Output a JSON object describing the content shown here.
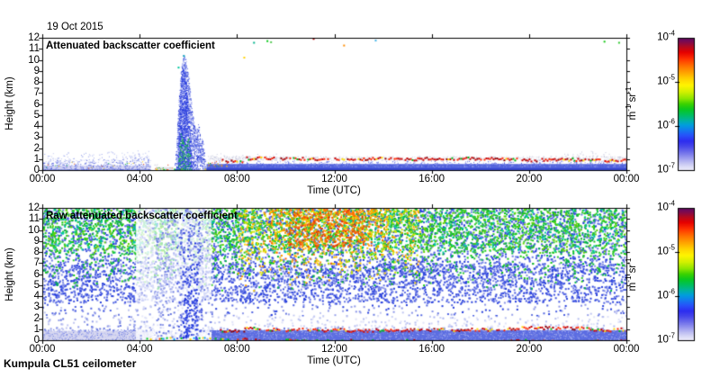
{
  "figure": {
    "date_label": "19 Oct 2015",
    "station_label": "Kumpula CL51 ceilometer",
    "background": "#ffffff"
  },
  "axes": {
    "x_label": "Time (UTC)",
    "y_label": "Height (km)",
    "x_tick_labels": [
      "00:00",
      "04:00",
      "08:00",
      "12:00",
      "16:00",
      "20:00",
      "00:00"
    ],
    "y_tick_labels": [
      "0",
      "1",
      "2",
      "3",
      "4",
      "5",
      "6",
      "7",
      "8",
      "9",
      "10",
      "11",
      "12"
    ],
    "x_range_hours": [
      0,
      24
    ],
    "y_range_km": [
      0,
      12
    ]
  },
  "colorbar": {
    "tick_labels": [
      "10^-4",
      "10^-5",
      "10^-6",
      "10^-7"
    ],
    "unit_label": "m^-1 sr^-1",
    "value_min": "1e-7",
    "value_max": "1e-4",
    "gradient_stops": [
      [
        0.0,
        "#5a0a64"
      ],
      [
        0.03,
        "#7c0a50"
      ],
      [
        0.07,
        "#b40a1e"
      ],
      [
        0.11,
        "#e60000"
      ],
      [
        0.16,
        "#ff3200"
      ],
      [
        0.21,
        "#ff6e00"
      ],
      [
        0.26,
        "#ffa000"
      ],
      [
        0.31,
        "#ffd200"
      ],
      [
        0.36,
        "#fff500"
      ],
      [
        0.41,
        "#d2f000"
      ],
      [
        0.46,
        "#8ce600"
      ],
      [
        0.5,
        "#3cd200"
      ],
      [
        0.54,
        "#0ac81e"
      ],
      [
        0.58,
        "#00c05a"
      ],
      [
        0.62,
        "#00b49b"
      ],
      [
        0.66,
        "#009ede"
      ],
      [
        0.7,
        "#1478f0"
      ],
      [
        0.74,
        "#2850fa"
      ],
      [
        0.78,
        "#2d2df0"
      ],
      [
        0.82,
        "#4646ea"
      ],
      [
        0.86,
        "#6a6aea"
      ],
      [
        0.9,
        "#9292ee"
      ],
      [
        0.94,
        "#bcbcf2"
      ],
      [
        0.97,
        "#d8d8f6"
      ],
      [
        1.0,
        "#ecebfa"
      ]
    ]
  },
  "chart_data": [
    {
      "type": "heatmap",
      "title": "Attenuated backscatter coefficient",
      "xlabel": "Time (UTC)",
      "ylabel": "Height (km)",
      "x_range": [
        0,
        24
      ],
      "y_range": [
        0,
        12
      ],
      "value_range": [
        "1e-7",
        "1e-4"
      ],
      "features": [
        {
          "kind": "fill",
          "t": [
            0,
            4.45
          ],
          "h": [
            0,
            0.42
          ],
          "color": "#d6d6f2"
        },
        {
          "kind": "fill",
          "t": [
            0,
            4.45
          ],
          "h": [
            0,
            0.07
          ],
          "color": "#8c96e8"
        },
        {
          "kind": "speckle",
          "t": [
            0,
            4.45
          ],
          "h": [
            0,
            1.15
          ],
          "density": 0.5,
          "size": 1,
          "colors": [
            "#6a7ae0",
            "#8c96e8",
            "#b4bcf0",
            "#4656dc"
          ],
          "fade": "top"
        },
        {
          "kind": "speckle",
          "t": [
            0,
            4.45
          ],
          "h": [
            0.7,
            1.8
          ],
          "density": 0.16,
          "size": 1,
          "colors": [
            "#9aa6ec",
            "#c0c6f2"
          ],
          "fade": "top"
        },
        {
          "kind": "speckle",
          "t": [
            3.2,
            4.4
          ],
          "h": [
            0.8,
            2.1
          ],
          "density": 0.14,
          "size": 1,
          "colors": [
            "#8c96e8",
            "#b4bcf0"
          ],
          "fade": "top"
        },
        {
          "kind": "speckle",
          "t": [
            0.1,
            4.3
          ],
          "h": [
            0.1,
            0.8
          ],
          "density": 0.02,
          "size": 1,
          "colors": [
            "#e64600",
            "#00b43c",
            "#ffd200"
          ]
        },
        {
          "kind": "fill",
          "t": [
            4.65,
            5.4
          ],
          "h": [
            0,
            0.28
          ],
          "color": "#e4e4ee"
        },
        {
          "kind": "speckle",
          "t": [
            4.6,
            5.45
          ],
          "h": [
            0.1,
            0.55
          ],
          "density": 0.12,
          "size": 1,
          "colors": [
            "#b4b4c8",
            "#d22800",
            "#00b43c",
            "#ff9600",
            "#c8c8dc"
          ]
        },
        {
          "kind": "line",
          "t": [
            4.3,
            6.9
          ],
          "h": 0.08,
          "jitter": 0.06,
          "density": 0.3,
          "size": 2,
          "colors": [
            "#00c814",
            "#ff3c00",
            "#ffdc00",
            "#ff9600"
          ]
        },
        {
          "kind": "poly",
          "pts": [
            [
              5.42,
              0
            ],
            [
              5.5,
              2.2
            ],
            [
              5.58,
              5.5
            ],
            [
              5.68,
              8.8
            ],
            [
              5.78,
              10.55
            ],
            [
              5.9,
              10.0
            ],
            [
              6.0,
              8.6
            ],
            [
              6.1,
              6.6
            ],
            [
              6.22,
              4.4
            ],
            [
              6.32,
              3.4
            ],
            [
              6.42,
              4.6
            ],
            [
              6.5,
              2.4
            ],
            [
              6.58,
              3.1
            ],
            [
              6.68,
              1.2
            ],
            [
              6.75,
              0
            ]
          ],
          "density": 0.7,
          "size": 1,
          "colors": [
            "#2336dd",
            "#3c50e6",
            "#6a7ae6",
            "#a0aaf0",
            "#1428c8"
          ]
        },
        {
          "kind": "poly",
          "pts": [
            [
              5.55,
              0
            ],
            [
              5.62,
              5.0
            ],
            [
              5.72,
              9.6
            ],
            [
              5.85,
              9.0
            ],
            [
              5.95,
              7.0
            ],
            [
              6.05,
              4.0
            ],
            [
              6.15,
              0
            ]
          ],
          "density": 0.8,
          "size": 1,
          "colors": [
            "#1e32dc",
            "#2d41e0",
            "#4656e4"
          ]
        },
        {
          "kind": "poly",
          "pts": [
            [
              5.55,
              0
            ],
            [
              5.68,
              3.4
            ],
            [
              5.85,
              2.2
            ],
            [
              6.0,
              3.0
            ],
            [
              6.08,
              1.2
            ],
            [
              6.1,
              0
            ]
          ],
          "density": 0.38,
          "size": 1,
          "colors": [
            "#00b446",
            "#14c814",
            "#32c850"
          ]
        },
        {
          "kind": "dots",
          "pts": [
            [
              5.82,
              10.35,
              "#00a0b4"
            ],
            [
              5.6,
              9.3,
              "#00c8a0"
            ]
          ]
        },
        {
          "kind": "fill",
          "t": [
            6.75,
            24
          ],
          "h": [
            0,
            0.55
          ],
          "color": "#5566dd"
        },
        {
          "kind": "fill",
          "t": [
            6.75,
            24
          ],
          "h": [
            0,
            0.18
          ],
          "color": "#3848d0"
        },
        {
          "kind": "speckle",
          "t": [
            6.75,
            24
          ],
          "h": [
            0.3,
            0.95
          ],
          "density": 0.5,
          "size": 1,
          "colors": [
            "#4656dc",
            "#6a7ae6",
            "#96a0ec"
          ],
          "fade": "top"
        },
        {
          "kind": "speckle",
          "t": [
            6.75,
            24
          ],
          "h": [
            0.9,
            1.28
          ],
          "density": 0.4,
          "size": 1,
          "colors": [
            "#d8d8e6",
            "#c6c6da",
            "#e8e8f2"
          ]
        },
        {
          "kind": "speckle",
          "t": [
            6.9,
            9.6
          ],
          "h": [
            1.0,
            1.55
          ],
          "density": 0.22,
          "size": 1,
          "colors": [
            "#ccd0e4",
            "#b8bcd8"
          ],
          "fade": "top"
        },
        {
          "kind": "speckle",
          "t": [
            21.4,
            23.3
          ],
          "h": [
            1.2,
            1.95
          ],
          "density": 0.12,
          "size": 1,
          "colors": [
            "#c8c8dc",
            "#b0b4d0"
          ],
          "fade": "top"
        },
        {
          "kind": "speckle",
          "t": [
            6.8,
            7.6
          ],
          "h": [
            0.35,
            0.85
          ],
          "density": 0.18,
          "size": 1,
          "colors": [
            "#ff3c00",
            "#00b43c",
            "#ffdc00",
            "#ff9600"
          ]
        },
        {
          "kind": "line",
          "t": [
            7.3,
            8.3
          ],
          "h": 0.85,
          "jitter": 0.1,
          "density": 0.8,
          "size": 2,
          "colors": [
            "#c80000",
            "#ff2800",
            "#8c0000",
            "#ffdc00",
            "#00b414"
          ],
          "weights": [
            0.45,
            0.25,
            0.12,
            0.1,
            0.08
          ]
        },
        {
          "kind": "line",
          "t": [
            8.3,
            24
          ],
          "h": 1.04,
          "jitter": 0.11,
          "density": 0.85,
          "size": 2,
          "colors": [
            "#c80000",
            "#ff2800",
            "#8c0000",
            "#ffdc00",
            "#00b414"
          ],
          "weights": [
            0.45,
            0.25,
            0.12,
            0.1,
            0.08
          ]
        },
        {
          "kind": "dots",
          "pts": [
            [
              8.3,
              10.2,
              "#ffd200"
            ],
            [
              8.7,
              11.55,
              "#00b48c"
            ],
            [
              9.25,
              11.7,
              "#00c814"
            ],
            [
              9.4,
              11.6,
              "#50c850"
            ],
            [
              11.15,
              11.9,
              "#b40000"
            ],
            [
              12.4,
              11.3,
              "#ff8c00"
            ],
            [
              13.7,
              11.75,
              "#46b4e6"
            ],
            [
              23.1,
              11.65,
              "#14c814"
            ],
            [
              23.7,
              11.55,
              "#32c832"
            ]
          ]
        }
      ]
    },
    {
      "type": "heatmap",
      "title": "Raw attenuated backscatter coefficient",
      "xlabel": "Time (UTC)",
      "ylabel": "Height (km)",
      "x_range": [
        0,
        24
      ],
      "y_range": [
        0,
        12
      ],
      "value_range": [
        "1e-7",
        "1e-4"
      ],
      "features": [
        {
          "kind": "fill",
          "t": [
            0,
            4.5
          ],
          "h": [
            0,
            0.85
          ],
          "color": "#d8d8f0"
        },
        {
          "kind": "fill",
          "t": [
            6.95,
            24
          ],
          "h": [
            0,
            0.9
          ],
          "color": "#5b6ce2"
        },
        {
          "kind": "speckle",
          "t": [
            0,
            24
          ],
          "h": [
            0,
            1.0
          ],
          "density": 0.3,
          "size": 1,
          "colors": [
            "#8c96e8",
            "#b4bcf0",
            "#6a7ae0"
          ]
        },
        {
          "kind": "speckle",
          "t": [
            0,
            24
          ],
          "h": [
            0.9,
            3.2
          ],
          "density": 0.2,
          "size": 2,
          "colors": [
            "#96a0ea",
            "#c0c6f2",
            "#6a7ae0"
          ],
          "fade": "top"
        },
        {
          "kind": "speckle",
          "t": [
            0,
            24
          ],
          "h": [
            1.8,
            7.0
          ],
          "density": 0.28,
          "size": 2,
          "colors": [
            "#2840dc",
            "#5064e2",
            "#8c96e8"
          ],
          "fade": "bottom"
        },
        {
          "kind": "speckle",
          "t": [
            0,
            24
          ],
          "h": [
            3.5,
            12
          ],
          "density": 0.3,
          "size": 2,
          "colors": [
            "#2840dc",
            "#4658e0",
            "#6a7ae6"
          ]
        },
        {
          "kind": "speckle",
          "t": [
            0,
            24
          ],
          "h": [
            4.5,
            12
          ],
          "density": 0.34,
          "size": 2,
          "colors": [
            "#14c814",
            "#32c832",
            "#00b446"
          ],
          "fade": "bottom"
        },
        {
          "kind": "speckle",
          "t": [
            0,
            24
          ],
          "h": [
            8,
            12
          ],
          "density": 0.22,
          "size": 2,
          "colors": [
            "#00c8a0",
            "#64d200",
            "#28c828"
          ]
        },
        {
          "kind": "speckle",
          "t": [
            8,
            15.5
          ],
          "h": [
            4.5,
            12
          ],
          "density": 0.26,
          "size": 2,
          "colors": [
            "#ffd200",
            "#c8e600",
            "#ffa000"
          ],
          "fade": "bottom"
        },
        {
          "kind": "speckle",
          "t": [
            9.3,
            14.2
          ],
          "h": [
            6.5,
            12
          ],
          "density": 0.3,
          "size": 2,
          "colors": [
            "#ff9600",
            "#ffc800",
            "#ff6400"
          ],
          "fade": "bottom"
        },
        {
          "kind": "speckle",
          "t": [
            10,
            13.2
          ],
          "h": [
            8.5,
            12
          ],
          "density": 0.26,
          "size": 2,
          "colors": [
            "#ff5000",
            "#ff7800",
            "#e63c00"
          ]
        },
        {
          "kind": "fill",
          "t": [
            3.85,
            4.6
          ],
          "h": [
            0,
            12
          ],
          "color": "rgba(255,255,255,0.78)"
        },
        {
          "kind": "speckle",
          "t": [
            3.85,
            4.6
          ],
          "h": [
            0,
            12
          ],
          "density": 0.1,
          "size": 2,
          "colors": [
            "#96a0ea",
            "#c0c6f2"
          ]
        },
        {
          "kind": "fill",
          "t": [
            4.6,
            5.5
          ],
          "h": [
            0,
            12
          ],
          "color": "rgba(255,255,255,0.6)"
        },
        {
          "kind": "speckle",
          "t": [
            4.6,
            5.5
          ],
          "h": [
            0,
            12
          ],
          "density": 0.14,
          "size": 2,
          "colors": [
            "#6a7ae0",
            "#96a0ea"
          ]
        },
        {
          "kind": "fill",
          "t": [
            5.5,
            6.6
          ],
          "h": [
            0,
            12
          ],
          "color": "rgba(255,255,255,0.82)"
        },
        {
          "kind": "speckle",
          "t": [
            5.5,
            6.6
          ],
          "h": [
            0,
            12
          ],
          "density": 0.3,
          "size": 2,
          "colors": [
            "#4656de",
            "#6a7ae6",
            "#96a0ec"
          ]
        },
        {
          "kind": "speckle",
          "t": [
            5.75,
            6.35
          ],
          "h": [
            0,
            9.8
          ],
          "density": 0.5,
          "size": 2,
          "colors": [
            "#1e32dc",
            "#2840dc",
            "#3c50e6"
          ],
          "fade": "top"
        },
        {
          "kind": "fill",
          "t": [
            6.6,
            6.95
          ],
          "h": [
            0,
            12
          ],
          "color": "rgba(255,255,255,0.72)"
        },
        {
          "kind": "speckle",
          "t": [
            6.6,
            6.95
          ],
          "h": [
            0,
            12
          ],
          "density": 0.1,
          "size": 2,
          "colors": [
            "#96a0ea",
            "#6a7ae0"
          ]
        },
        {
          "kind": "fill",
          "t": [
            7.0,
            24
          ],
          "h": [
            1.15,
            2.2
          ],
          "color": "rgba(255,255,255,0.5)"
        },
        {
          "kind": "line",
          "t": [
            7.3,
            8.3
          ],
          "h": 0.85,
          "jitter": 0.1,
          "density": 0.75,
          "size": 2,
          "colors": [
            "#c80000",
            "#ff2800",
            "#8c0000",
            "#ffdc00",
            "#00b414"
          ],
          "weights": [
            0.45,
            0.25,
            0.12,
            0.1,
            0.08
          ]
        },
        {
          "kind": "line",
          "t": [
            8.3,
            24
          ],
          "h": 1.02,
          "jitter": 0.12,
          "density": 0.8,
          "size": 2,
          "colors": [
            "#c80000",
            "#ff2800",
            "#8c0000",
            "#ffdc00",
            "#00b414"
          ],
          "weights": [
            0.45,
            0.25,
            0.12,
            0.1,
            0.08
          ]
        },
        {
          "kind": "line",
          "t": [
            4.2,
            7.9
          ],
          "h": 0.12,
          "jitter": 0.07,
          "density": 0.5,
          "size": 2,
          "colors": [
            "#00c814",
            "#ffdc00",
            "#ff3c00",
            "#00a0ff"
          ]
        },
        {
          "kind": "line",
          "t": [
            8,
            24
          ],
          "h": 0.1,
          "jitter": 0.06,
          "density": 0.22,
          "size": 2,
          "colors": [
            "#00c814",
            "#ff3c00",
            "#c80000"
          ]
        }
      ]
    }
  ]
}
